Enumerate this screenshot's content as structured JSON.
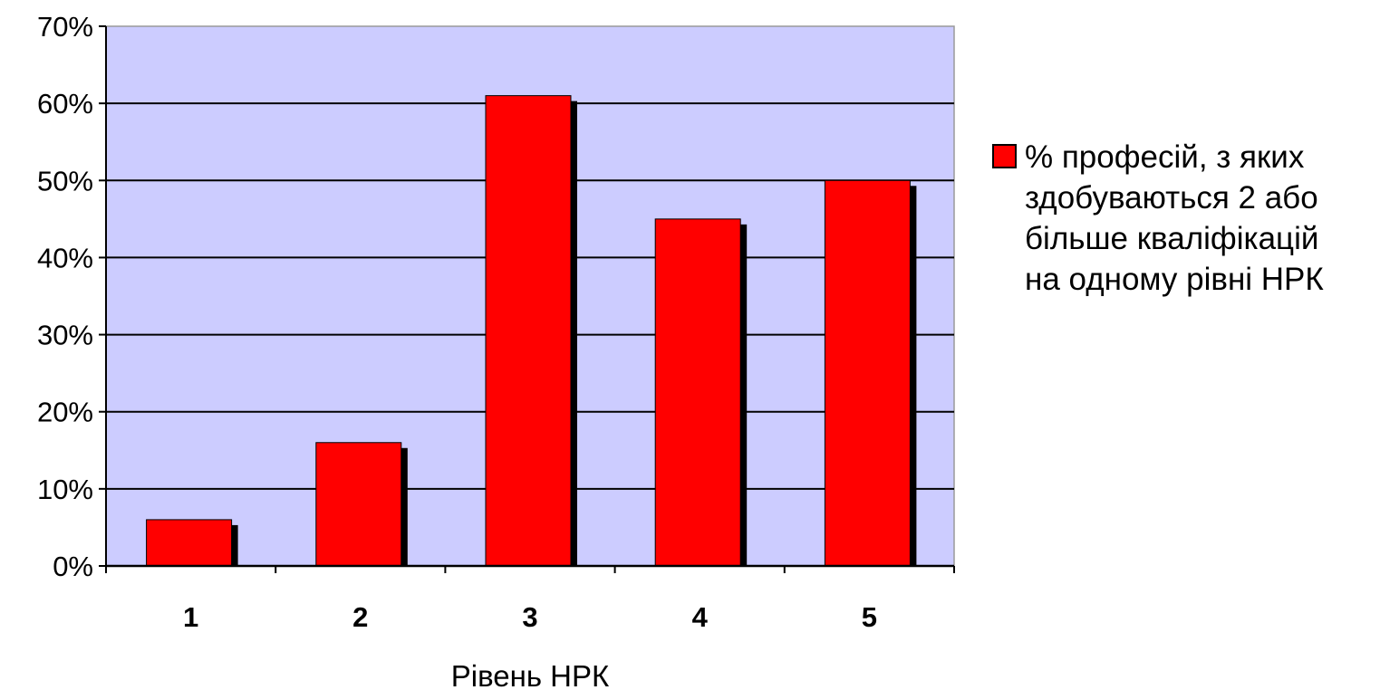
{
  "chart_data": {
    "type": "bar",
    "categories": [
      "1",
      "2",
      "3",
      "4",
      "5"
    ],
    "series": [
      {
        "name": "% професій, з яких здобуваються 2 або більше кваліфікацій на одному рівні НРК",
        "values": [
          6,
          16,
          61,
          45,
          50
        ],
        "color": "#ff0000"
      }
    ],
    "title": "",
    "xlabel": "Рівень НРК",
    "ylabel": "",
    "ylim": [
      0,
      70
    ],
    "yticks": [
      "0%",
      "10%",
      "20%",
      "30%",
      "40%",
      "50%",
      "60%",
      "70%"
    ],
    "grid": true,
    "legend_position": "right",
    "legend_lines": [
      "% професій, з яких",
      "здобуваються 2 або",
      "більше кваліфікацій",
      "на одному рівні НРК"
    ],
    "colors": {
      "plot_background": "#ccccff",
      "bar": "#ff0000",
      "bar_shadow": "#000000",
      "gridline": "#000000"
    }
  }
}
